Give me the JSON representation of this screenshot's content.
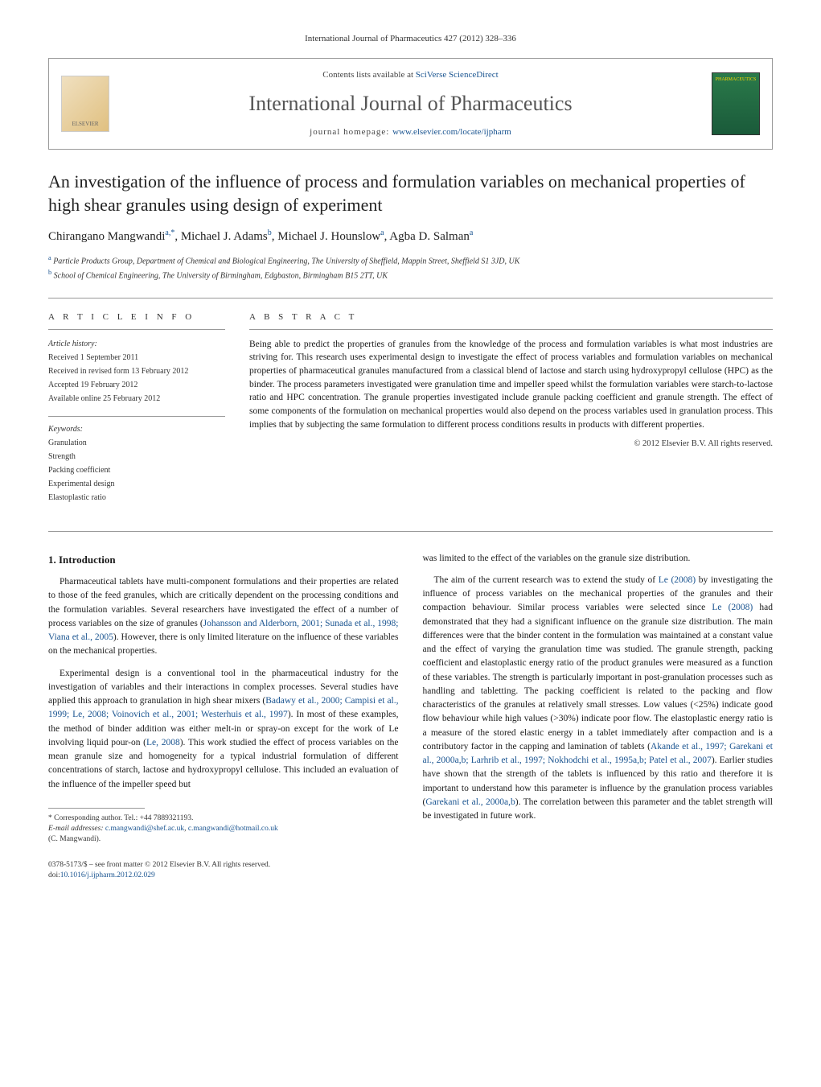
{
  "journal_ref": "International Journal of Pharmaceutics 427 (2012) 328–336",
  "header": {
    "contents_prefix": "Contents lists available at ",
    "contents_link": "SciVerse ScienceDirect",
    "journal_title": "International Journal of Pharmaceutics",
    "homepage_prefix": "journal homepage: ",
    "homepage_link": "www.elsevier.com/locate/ijpharm",
    "elsevier_label": "ELSEVIER",
    "cover_label": "PHARMACEUTICS"
  },
  "title": "An investigation of the influence of process and formulation variables on mechanical properties of high shear granules using design of experiment",
  "authors_html": "Chirangano Mangwandi",
  "author_sup_1": "a,*",
  "author_2": ", Michael J. Adams",
  "author_sup_2": "b",
  "author_3": ", Michael J. Hounslow",
  "author_sup_3": "a",
  "author_4": ", Agba D. Salman",
  "author_sup_4": "a",
  "affiliations": {
    "a": "Particle Products Group, Department of Chemical and Biological Engineering, The University of Sheffield, Mappin Street, Sheffield S1 3JD, UK",
    "b": "School of Chemical Engineering, The University of Birmingham, Edgbaston, Birmingham B15 2TT, UK"
  },
  "article_info": {
    "heading": "A R T I C L E   I N F O",
    "history_label": "Article history:",
    "received": "Received 1 September 2011",
    "revised": "Received in revised form 13 February 2012",
    "accepted": "Accepted 19 February 2012",
    "online": "Available online 25 February 2012",
    "keywords_label": "Keywords:",
    "kw1": "Granulation",
    "kw2": "Strength",
    "kw3": "Packing coefficient",
    "kw4": "Experimental design",
    "kw5": "Elastoplastic ratio"
  },
  "abstract": {
    "heading": "A B S T R A C T",
    "text": "Being able to predict the properties of granules from the knowledge of the process and formulation variables is what most industries are striving for. This research uses experimental design to investigate the effect of process variables and formulation variables on mechanical properties of pharmaceutical granules manufactured from a classical blend of lactose and starch using hydroxypropyl cellulose (HPC) as the binder. The process parameters investigated were granulation time and impeller speed whilst the formulation variables were starch-to-lactose ratio and HPC concentration. The granule properties investigated include granule packing coefficient and granule strength. The effect of some components of the formulation on mechanical properties would also depend on the process variables used in granulation process. This implies that by subjecting the same formulation to different process conditions results in products with different properties.",
    "copyright": "© 2012 Elsevier B.V. All rights reserved."
  },
  "section1": {
    "heading": "1. Introduction",
    "p1_a": "Pharmaceutical tablets have multi-component formulations and their properties are related to those of the feed granules, which are critically dependent on the processing conditions and the formulation variables. Several researchers have investigated the effect of a number of process variables on the size of granules (",
    "p1_cite1": "Johansson and Alderborn, 2001; Sunada et al., 1998; Viana et al., 2005",
    "p1_b": "). However, there is only limited literature on the influence of these variables on the mechanical properties.",
    "p2_a": "Experimental design is a conventional tool in the pharmaceutical industry for the investigation of variables and their interactions in complex processes. Several studies have applied this approach to granulation in high shear mixers (",
    "p2_cite1": "Badawy et al., 2000; Campisi et al., 1999; Le, 2008; Voinovich et al., 2001; Westerhuis et al., 1997",
    "p2_b": "). In most of these examples, the method of binder addition was either melt-in or spray-on except for the work of Le involving liquid pour-on (",
    "p2_cite2": "Le, 2008",
    "p2_c": "). This work studied the effect of process variables on the mean granule size and homogeneity for a typical industrial formulation of different concentrations of starch, lactose and hydroxypropyl cellulose. This included an evaluation of the influence of the impeller speed but "
  },
  "col2": {
    "p1": "was limited to the effect of the variables on the granule size distribution.",
    "p2_a": "The aim of the current research was to extend the study of ",
    "p2_cite1": "Le (2008)",
    "p2_b": " by investigating the influence of process variables on the mechanical properties of the granules and their compaction behaviour. Similar process variables were selected since ",
    "p2_cite2": "Le (2008)",
    "p2_c": " had demonstrated that they had a significant influence on the granule size distribution. The main differences were that the binder content in the formulation was maintained at a constant value and the effect of varying the granulation time was studied. The granule strength, packing coefficient and elastoplastic energy ratio of the product granules were measured as a function of these variables. The strength is particularly important in post-granulation processes such as handling and tabletting. The packing coefficient is related to the packing and flow characteristics of the granules at relatively small stresses. Low values (<25%) indicate good flow behaviour while high values (>30%) indicate poor flow. The elastoplastic energy ratio is a measure of the stored elastic energy in a tablet immediately after compaction and is a contributory factor in the capping and lamination of tablets (",
    "p2_cite3": "Akande et al., 1997; Garekani et al., 2000a,b; Larhrib et al., 1997; Nokhodchi et al., 1995a,b; Patel et al., 2007",
    "p2_d": "). Earlier studies have shown that the strength of the tablets is influenced by this ratio and therefore it is important to understand how this parameter is influence by the granulation process variables (",
    "p2_cite4": "Garekani et al., 2000a,b",
    "p2_e": "). The correlation between this parameter and the tablet strength will be investigated in future work."
  },
  "footnote": {
    "corr": "* Corresponding author. Tel.: +44 7889321193.",
    "email_label": "E-mail addresses: ",
    "email1": "c.mangwandi@shef.ac.uk",
    "email_sep": ", ",
    "email2": "c.mangwandi@hotmail.co.uk",
    "name": "(C. Mangwandi)."
  },
  "bottom": {
    "issn": "0378-5173/$ – see front matter © 2012 Elsevier B.V. All rights reserved.",
    "doi_label": "doi:",
    "doi": "10.1016/j.ijpharm.2012.02.029"
  },
  "colors": {
    "link": "#1a5490",
    "text": "#1a1a1a",
    "heading_gray": "#555",
    "border": "#999"
  }
}
